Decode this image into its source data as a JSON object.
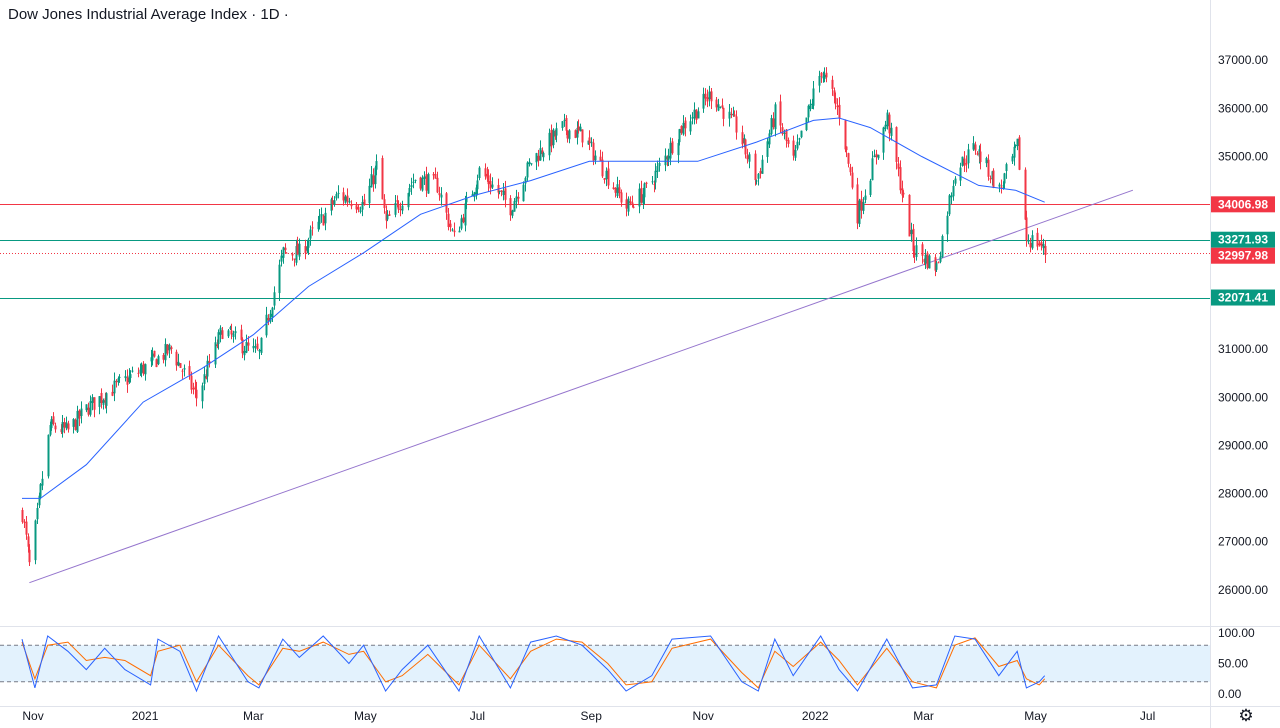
{
  "header": {
    "title": "Dow Jones Industrial Average Index · 1D ·"
  },
  "chart_data": {
    "type": "candlestick",
    "title": "Dow Jones Industrial Average Index · 1D ·",
    "x_ticks": [
      "Nov",
      "2021",
      "Mar",
      "May",
      "Jul",
      "Sep",
      "Nov",
      "2022",
      "Mar",
      "May",
      "Jul"
    ],
    "y_ticks": [
      "37000.00",
      "36000.00",
      "35000.00",
      "31000.00",
      "30000.00",
      "29000.00",
      "28000.00",
      "27000.00",
      "26000.00"
    ],
    "ylim": [
      25250,
      38250
    ],
    "price_path": [
      [
        "2020-10-26",
        27600
      ],
      [
        "2020-10-30",
        26500
      ],
      [
        "2020-11-04",
        27800
      ],
      [
        "2020-11-10",
        29400
      ],
      [
        "2020-11-20",
        29300
      ],
      [
        "2020-12-01",
        29800
      ],
      [
        "2020-12-15",
        30200
      ],
      [
        "2020-12-31",
        30600
      ],
      [
        "2021-01-15",
        31000
      ],
      [
        "2021-01-29",
        30000
      ],
      [
        "2021-02-12",
        31400
      ],
      [
        "2021-02-26",
        31000
      ],
      [
        "2021-03-04",
        30900
      ],
      [
        "2021-03-17",
        33000
      ],
      [
        "2021-03-26",
        33000
      ],
      [
        "2021-04-16",
        34200
      ],
      [
        "2021-04-30",
        34000
      ],
      [
        "2021-05-07",
        34800
      ],
      [
        "2021-05-12",
        33600
      ],
      [
        "2021-05-28",
        34550
      ],
      [
        "2021-06-09",
        34400
      ],
      [
        "2021-06-18",
        33300
      ],
      [
        "2021-07-02",
        34700
      ],
      [
        "2021-07-19",
        33950
      ],
      [
        "2021-07-30",
        34900
      ],
      [
        "2021-08-16",
        35600
      ],
      [
        "2021-08-27",
        35450
      ],
      [
        "2021-09-20",
        33950
      ],
      [
        "2021-10-01",
        34300
      ],
      [
        "2021-10-20",
        35600
      ],
      [
        "2021-11-05",
        36300
      ],
      [
        "2021-11-19",
        35600
      ],
      [
        "2021-11-30",
        34500
      ],
      [
        "2021-12-10",
        35900
      ],
      [
        "2021-12-20",
        34900
      ],
      [
        "2022-01-04",
        36800
      ],
      [
        "2022-01-14",
        35900
      ],
      [
        "2022-01-24",
        33800
      ],
      [
        "2022-02-09",
        35800
      ],
      [
        "2022-02-23",
        33100
      ],
      [
        "2022-03-08",
        32700
      ],
      [
        "2022-03-18",
        34700
      ],
      [
        "2022-03-29",
        35200
      ],
      [
        "2022-04-11",
        34300
      ],
      [
        "2022-04-21",
        35200
      ],
      [
        "2022-04-26",
        33300
      ],
      [
        "2022-05-03",
        33200
      ],
      [
        "2022-05-06",
        33000
      ]
    ],
    "moving_average": [
      [
        "2020-10-26",
        27900
      ],
      [
        "2020-11-05",
        27900
      ],
      [
        "2020-11-30",
        28600
      ],
      [
        "2020-12-31",
        29900
      ],
      [
        "2021-02-01",
        30600
      ],
      [
        "2021-03-01",
        31300
      ],
      [
        "2021-03-31",
        32300
      ],
      [
        "2021-04-30",
        33000
      ],
      [
        "2021-05-31",
        33800
      ],
      [
        "2021-06-30",
        34200
      ],
      [
        "2021-07-30",
        34500
      ],
      [
        "2021-08-31",
        34900
      ],
      [
        "2021-09-30",
        34900
      ],
      [
        "2021-10-29",
        34900
      ],
      [
        "2021-11-30",
        35300
      ],
      [
        "2021-12-31",
        35750
      ],
      [
        "2022-01-14",
        35800
      ],
      [
        "2022-01-31",
        35600
      ],
      [
        "2022-02-28",
        35000
      ],
      [
        "2022-03-31",
        34400
      ],
      [
        "2022-04-20",
        34300
      ],
      [
        "2022-05-06",
        34050
      ]
    ],
    "levels": [
      {
        "label": "34006.98",
        "value": 34006.98,
        "color": "#f23645",
        "style": "solid"
      },
      {
        "label": "33271.93",
        "value": 33271.93,
        "color": "#089981",
        "style": "solid"
      },
      {
        "label": "32997.98",
        "value": 32997.98,
        "color": "#f23645",
        "style": "dotted"
      },
      {
        "label": "32071.41",
        "value": 32071.41,
        "color": "#089981",
        "style": "solid"
      }
    ],
    "trendline": {
      "from": [
        "2020-10-30",
        26150
      ],
      "to": [
        "2022-06-23",
        34300
      ],
      "color": "#9575cd"
    },
    "stochastic": {
      "y_ticks": [
        "100.00",
        "50.00",
        "0.00"
      ],
      "ylim": [
        0,
        100
      ],
      "bands": [
        20,
        80
      ],
      "points": [
        [
          "2020-10-26",
          90,
          85
        ],
        [
          "2020-11-02",
          10,
          25
        ],
        [
          "2020-11-09",
          95,
          80
        ],
        [
          "2020-11-20",
          70,
          85
        ],
        [
          "2020-11-30",
          40,
          55
        ],
        [
          "2020-12-10",
          75,
          60
        ],
        [
          "2020-12-21",
          40,
          55
        ],
        [
          "2021-01-04",
          15,
          30
        ],
        [
          "2021-01-08",
          90,
          70
        ],
        [
          "2021-01-20",
          70,
          80
        ],
        [
          "2021-01-29",
          5,
          20
        ],
        [
          "2021-02-10",
          95,
          80
        ],
        [
          "2021-02-26",
          20,
          30
        ],
        [
          "2021-03-04",
          10,
          15
        ],
        [
          "2021-03-17",
          90,
          75
        ],
        [
          "2021-03-26",
          60,
          70
        ],
        [
          "2021-04-08",
          95,
          85
        ],
        [
          "2021-04-22",
          50,
          65
        ],
        [
          "2021-04-30",
          80,
          70
        ],
        [
          "2021-05-12",
          5,
          20
        ],
        [
          "2021-05-21",
          40,
          30
        ],
        [
          "2021-06-04",
          80,
          65
        ],
        [
          "2021-06-21",
          5,
          15
        ],
        [
          "2021-07-02",
          95,
          80
        ],
        [
          "2021-07-19",
          10,
          25
        ],
        [
          "2021-07-30",
          85,
          70
        ],
        [
          "2021-08-13",
          95,
          90
        ],
        [
          "2021-08-27",
          80,
          85
        ],
        [
          "2021-09-10",
          40,
          50
        ],
        [
          "2021-09-20",
          5,
          15
        ],
        [
          "2021-10-04",
          30,
          20
        ],
        [
          "2021-10-15",
          90,
          75
        ],
        [
          "2021-11-05",
          95,
          90
        ],
        [
          "2021-11-22",
          20,
          35
        ],
        [
          "2021-12-01",
          5,
          10
        ],
        [
          "2021-12-10",
          90,
          70
        ],
        [
          "2021-12-20",
          30,
          45
        ],
        [
          "2022-01-04",
          95,
          85
        ],
        [
          "2022-01-14",
          40,
          55
        ],
        [
          "2022-01-24",
          5,
          15
        ],
        [
          "2022-02-09",
          90,
          75
        ],
        [
          "2022-02-23",
          10,
          20
        ],
        [
          "2022-03-08",
          15,
          10
        ],
        [
          "2022-03-18",
          95,
          80
        ],
        [
          "2022-03-29",
          90,
          92
        ],
        [
          "2022-04-11",
          30,
          45
        ],
        [
          "2022-04-21",
          70,
          55
        ],
        [
          "2022-04-26",
          10,
          25
        ],
        [
          "2022-05-03",
          20,
          15
        ],
        [
          "2022-05-06",
          30,
          25
        ]
      ]
    },
    "colors": {
      "up": "#089981",
      "down": "#f23645",
      "moving_average": "#2962ff",
      "stoch_k": "#2962ff",
      "stoch_d": "#ff6d00",
      "stoch_band": "#e3f2fd"
    }
  }
}
